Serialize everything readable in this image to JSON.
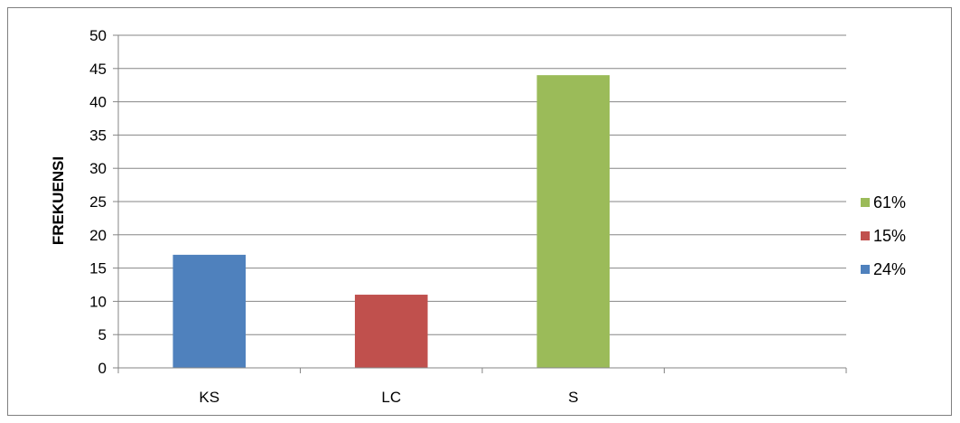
{
  "chart_data": {
    "type": "bar",
    "categories": [
      "KS",
      "LC",
      "S",
      ""
    ],
    "values": [
      17,
      11,
      44,
      null
    ],
    "bar_colors": [
      "#4f81bd",
      "#c0504d",
      "#9bbb59"
    ],
    "xlabel": "",
    "ylabel": "FREKUENSI",
    "ylim": [
      0,
      50
    ],
    "ytick_step": 5,
    "grid": true,
    "legend": {
      "placement": "right",
      "entries": [
        {
          "label": "61%",
          "color": "#9bbb59"
        },
        {
          "label": "15%",
          "color": "#c0504d"
        },
        {
          "label": "24%",
          "color": "#4f81bd"
        }
      ]
    }
  }
}
